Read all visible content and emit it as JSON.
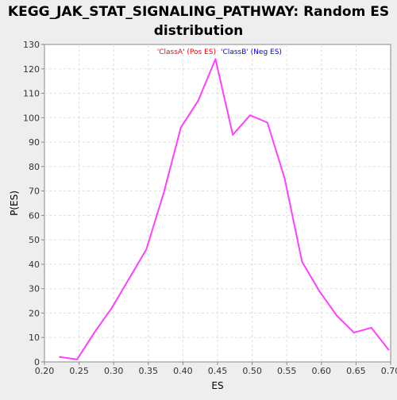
{
  "chart_data": {
    "type": "line",
    "title_line1": "KEGG_JAK_STAT_SIGNALING_PATHWAY: Random ES",
    "title_line2": "distribution",
    "xlabel": "ES",
    "ylabel": "P(ES)",
    "xlim": [
      0.2,
      0.7
    ],
    "ylim": [
      0,
      130
    ],
    "xticks": [
      "0.20",
      "0.25",
      "0.30",
      "0.35",
      "0.40",
      "0.45",
      "0.50",
      "0.55",
      "0.60",
      "0.65",
      "0.70"
    ],
    "yticks": [
      "0",
      "10",
      "20",
      "30",
      "40",
      "50",
      "60",
      "70",
      "80",
      "90",
      "100",
      "110",
      "120",
      "130"
    ],
    "grid": true,
    "legend": {
      "position": "top-center",
      "entries": [
        {
          "label": "'ClassA' (Pos ES)",
          "color": "#ff0000"
        },
        {
          "label": "'ClassB' (Neg ES)",
          "color": "#0000ff"
        }
      ]
    },
    "series": [
      {
        "color": "#ff40ff",
        "x": [
          0.222,
          0.247,
          0.272,
          0.297,
          0.322,
          0.347,
          0.372,
          0.397,
          0.422,
          0.447,
          0.472,
          0.497,
          0.522,
          0.547,
          0.572,
          0.597,
          0.622,
          0.647,
          0.672,
          0.697
        ],
        "y": [
          2,
          1,
          12,
          22,
          34,
          46,
          69,
          96,
          107,
          124,
          93,
          101,
          98,
          75,
          41,
          29,
          19,
          12,
          14,
          5
        ]
      }
    ]
  }
}
